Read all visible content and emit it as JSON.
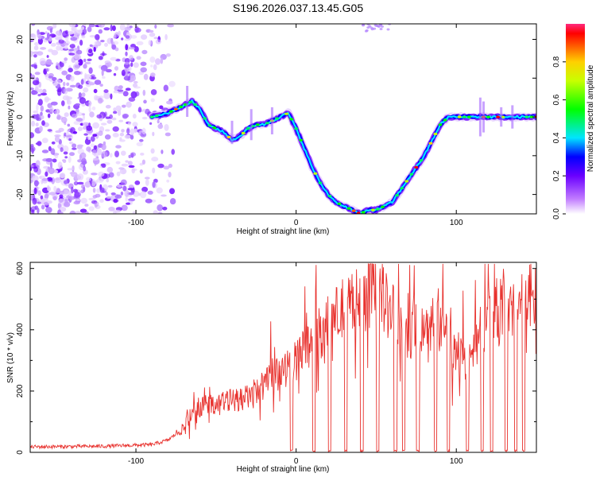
{
  "figure": {
    "title": "S196.2026.037.13.45.G05"
  },
  "chart_data": [
    {
      "type": "heatmap",
      "name": "spectrogram",
      "xlabel": "Height of straight line (km)",
      "ylabel": "Frequency (Hz)",
      "xlim": [
        -166,
        150
      ],
      "ylim": [
        -25,
        24
      ],
      "xticks": [
        -100,
        0,
        100
      ],
      "yticks": [
        -20,
        -10,
        0,
        10,
        20
      ],
      "tone_track": {
        "x": [
          -90,
          -80,
          -70,
          -65,
          -60,
          -55,
          -45,
          -40,
          -35,
          -30,
          -25,
          -20,
          -15,
          -10,
          -5,
          0,
          5,
          10,
          15,
          20,
          25,
          30,
          35,
          40,
          45,
          50,
          55,
          60,
          65,
          70,
          75,
          80,
          85,
          90,
          95,
          100,
          110,
          120,
          130,
          140,
          150
        ],
        "y": [
          0,
          1,
          3,
          4,
          2,
          -2,
          -4,
          -6,
          -5,
          -3,
          -2,
          -2,
          -1,
          0,
          1,
          -3,
          -8,
          -13,
          -17,
          -20,
          -22,
          -23,
          -24,
          -25,
          -24,
          -24,
          -23,
          -22,
          -19,
          -16,
          -13,
          -10,
          -6,
          -2,
          0,
          0,
          0,
          0,
          0,
          0,
          0
        ]
      },
      "noise_region": {
        "x_from": -166,
        "x_to": -75
      },
      "colorbar": {
        "label": "Normalized spectral amplitude",
        "range": [
          0.0,
          1.0
        ],
        "ticks": [
          0.0,
          0.2,
          0.4,
          0.6,
          0.8
        ]
      }
    },
    {
      "type": "line",
      "name": "snr",
      "xlabel": "Height of straight line (km)",
      "ylabel": "SNR (10 * v/v)",
      "xlim": [
        -166,
        150
      ],
      "ylim": [
        0,
        620
      ],
      "xticks": [
        -100,
        0,
        100
      ],
      "yticks": [
        0,
        200,
        400,
        600
      ],
      "color": "#e8322e",
      "envelope": {
        "x": [
          -166,
          -120,
          -90,
          -80,
          -70,
          -65,
          -60,
          -50,
          -40,
          -30,
          -20,
          -10,
          0,
          10,
          20,
          30,
          40,
          50,
          55,
          60,
          65,
          70,
          80,
          90,
          100,
          105,
          110,
          115,
          120,
          130,
          140,
          150
        ],
        "y": [
          18,
          20,
          25,
          40,
          80,
          140,
          150,
          160,
          170,
          180,
          220,
          260,
          300,
          360,
          420,
          470,
          500,
          520,
          490,
          460,
          400,
          380,
          420,
          420,
          330,
          300,
          320,
          390,
          450,
          480,
          500,
          500
        ]
      },
      "dropouts_x": [
        -3,
        11,
        21,
        31,
        41,
        51,
        62,
        67,
        76,
        87,
        95,
        107,
        116,
        122,
        131,
        137,
        142
      ]
    }
  ]
}
